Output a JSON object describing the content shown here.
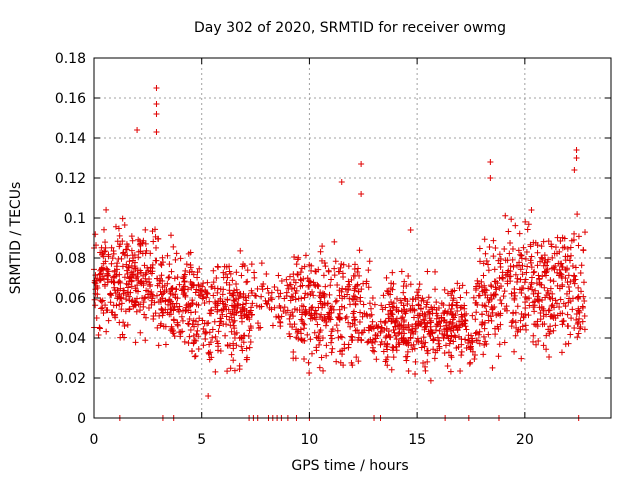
{
  "chart_data": {
    "type": "scatter",
    "title": "Day 302 of 2020, SRMTID for receiver owmg",
    "xlabel": "GPS time / hours",
    "ylabel": "SRMTID / TECUs",
    "xlim": [
      0,
      24
    ],
    "ylim": [
      0,
      0.18
    ],
    "xticks": [
      0,
      5,
      10,
      15,
      20
    ],
    "yticks": [
      0,
      0.02,
      0.04,
      0.06,
      0.08,
      0.1,
      0.12,
      0.14,
      0.16,
      0.18
    ],
    "xtick_labels": [
      "0",
      "5",
      "10",
      "15",
      "20"
    ],
    "ytick_labels": [
      "0",
      "0.02",
      "0.04",
      "0.06",
      "0.08",
      "0.1",
      "0.12",
      "0.14",
      "0.16",
      "0.18"
    ],
    "grid": true,
    "marker": "+",
    "color": "#e00000",
    "notable_points": [
      {
        "x": 2.9,
        "y": 0.165
      },
      {
        "x": 2.9,
        "y": 0.157
      },
      {
        "x": 2.9,
        "y": 0.152
      },
      {
        "x": 2.9,
        "y": 0.143
      },
      {
        "x": 2.0,
        "y": 0.144
      },
      {
        "x": 12.4,
        "y": 0.127
      },
      {
        "x": 12.4,
        "y": 0.112
      },
      {
        "x": 11.5,
        "y": 0.118
      },
      {
        "x": 18.4,
        "y": 0.128
      },
      {
        "x": 18.4,
        "y": 0.12
      },
      {
        "x": 22.4,
        "y": 0.134
      },
      {
        "x": 22.4,
        "y": 0.13
      },
      {
        "x": 22.3,
        "y": 0.124
      },
      {
        "x": 14.7,
        "y": 0.094
      },
      {
        "x": 5.3,
        "y": 0.011
      }
    ],
    "cluster_bands": [
      {
        "x_from": 0.0,
        "x_to": 3.0,
        "y_low": 0.03,
        "y_high": 0.11,
        "n": 300
      },
      {
        "x_from": 3.0,
        "x_to": 4.5,
        "y_low": 0.025,
        "y_high": 0.095,
        "n": 140
      },
      {
        "x_from": 4.5,
        "x_to": 7.3,
        "y_low": 0.015,
        "y_high": 0.09,
        "n": 260
      },
      {
        "x_from": 7.3,
        "x_to": 9.0,
        "y_low": 0.035,
        "y_high": 0.085,
        "n": 60
      },
      {
        "x_from": 9.0,
        "x_to": 12.8,
        "y_low": 0.015,
        "y_high": 0.095,
        "n": 320
      },
      {
        "x_from": 12.8,
        "x_to": 13.5,
        "y_low": 0.02,
        "y_high": 0.07,
        "n": 40
      },
      {
        "x_from": 13.5,
        "x_to": 16.7,
        "y_low": 0.015,
        "y_high": 0.08,
        "n": 320
      },
      {
        "x_from": 16.7,
        "x_to": 17.7,
        "y_low": 0.015,
        "y_high": 0.075,
        "n": 70
      },
      {
        "x_from": 17.7,
        "x_to": 19.0,
        "y_low": 0.02,
        "y_high": 0.1,
        "n": 110
      },
      {
        "x_from": 19.0,
        "x_to": 22.8,
        "y_low": 0.02,
        "y_high": 0.11,
        "n": 330
      }
    ],
    "zero_points_x": [
      1.2,
      3.2,
      3.7,
      7.2,
      7.4,
      7.6,
      8.1,
      8.3,
      8.5,
      8.7,
      9.0,
      9.4,
      10.0,
      13.0,
      13.3,
      16.3,
      17.4,
      18.8,
      22.5
    ]
  }
}
